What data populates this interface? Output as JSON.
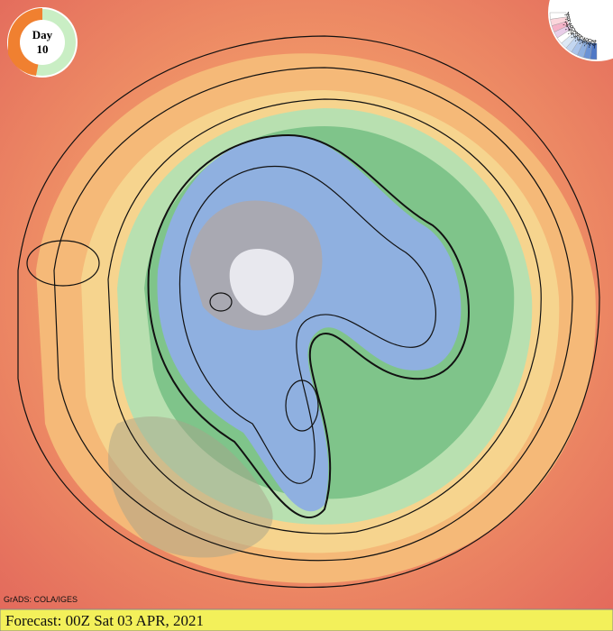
{
  "badge": {
    "label": "Day",
    "day": "10"
  },
  "legend": {
    "labels": [
      "-4",
      "-8",
      "-12",
      "-16",
      "-20",
      "-24",
      "-28",
      "-32",
      "-36",
      "-40",
      "-44"
    ]
  },
  "credit": "GrADS: COLA/IGES",
  "footer": "Forecast: 00Z Sat 03 APR, 2021"
}
